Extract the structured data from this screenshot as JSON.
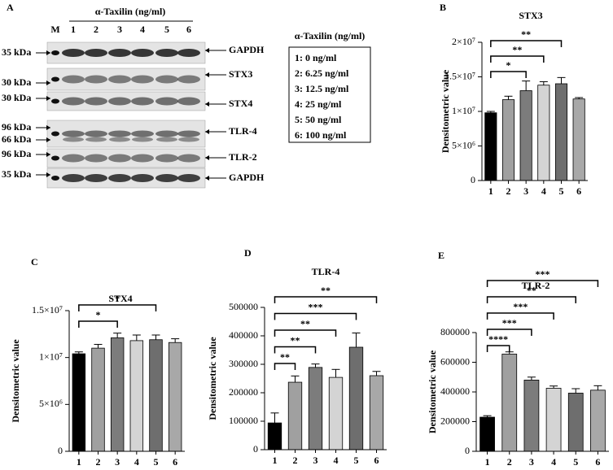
{
  "blot": {
    "panel": "A",
    "marker": "M",
    "treatment": "α-Taxilin (ng/ml)",
    "lanes": [
      "1",
      "2",
      "3",
      "4",
      "5",
      "6"
    ],
    "sizes": [
      "35 kDa",
      "30 kDa",
      "30 kDa",
      "96 kDa",
      "66 kDa",
      "96 kDa",
      "35 kDa"
    ],
    "proteins": [
      "GAPDH",
      "STX3",
      "STX4",
      "TLR-4",
      "TLR-2",
      "GAPDH"
    ]
  },
  "legend": {
    "title": "α-Taxilin (ng/ml)",
    "items": [
      "1: 0 ng/ml",
      "2: 6.25 ng/ml",
      "3: 12.5 ng/ml",
      "4: 25 ng/ml",
      "5: 50 ng/ml",
      "6: 100 ng/ml"
    ]
  },
  "chart_data": [
    {
      "type": "bar",
      "panel": "B",
      "title": "STX3",
      "y_label": "Densitometric value",
      "categories": [
        "1",
        "2",
        "3",
        "4",
        "5",
        "6"
      ],
      "values": [
        9800000,
        11700000,
        13000000,
        13800000,
        14000000,
        11800000
      ],
      "errors": [
        200000,
        500000,
        1400000,
        500000,
        900000,
        200000
      ],
      "colors": [
        "#000000",
        "#a0a0a0",
        "#7c7c7c",
        "#d4d4d4",
        "#6e6e6e",
        "#a8a8a8"
      ],
      "ylim": [
        0,
        20000000
      ],
      "yticks": [
        0,
        {
          "value": 5000000,
          "label": "5×10⁶"
        },
        {
          "value": 10000000,
          "label": "1×10⁷"
        },
        {
          "value": 15000000,
          "label": "1.5×10⁷"
        },
        {
          "value": 20000000,
          "label": "2×10⁷"
        }
      ],
      "brackets": [
        {
          "from": "1",
          "to": "3",
          "label": "*"
        },
        {
          "from": "1",
          "to": "4",
          "label": "**"
        },
        {
          "from": "1",
          "to": "5",
          "label": "**"
        }
      ]
    },
    {
      "type": "bar",
      "panel": "C",
      "title": "STX4",
      "y_label": "Densitometric value",
      "categories": [
        "1",
        "2",
        "3",
        "4",
        "5",
        "6"
      ],
      "values": [
        10400000,
        11000000,
        12100000,
        11800000,
        11900000,
        11600000
      ],
      "errors": [
        200000,
        400000,
        500000,
        600000,
        500000,
        400000
      ],
      "colors": [
        "#000000",
        "#a0a0a0",
        "#7c7c7c",
        "#d4d4d4",
        "#6e6e6e",
        "#a8a8a8"
      ],
      "ylim": [
        0,
        15000000
      ],
      "yticks": [
        0,
        {
          "value": 5000000,
          "label": "5×10⁶"
        },
        {
          "value": 10000000,
          "label": "1×10⁷"
        },
        {
          "value": 15000000,
          "label": "1.5×10⁷"
        }
      ],
      "brackets": [
        {
          "from": "1",
          "to": "3",
          "label": "*"
        },
        {
          "from": "1",
          "to": "5",
          "label": "*"
        }
      ]
    },
    {
      "type": "bar",
      "panel": "D",
      "title": "TLR-4",
      "y_label": "Densitometric value",
      "categories": [
        "1",
        "2",
        "3",
        "4",
        "5",
        "6"
      ],
      "values": [
        94000,
        237000,
        289000,
        254000,
        360000,
        260000
      ],
      "errors": [
        35000,
        22000,
        12000,
        28000,
        50000,
        15000
      ],
      "colors": [
        "#000000",
        "#a0a0a0",
        "#7c7c7c",
        "#d4d4d4",
        "#6e6e6e",
        "#a8a8a8"
      ],
      "ylim": [
        0,
        500000
      ],
      "yticks": [
        0,
        100000,
        200000,
        300000,
        400000,
        500000
      ],
      "brackets": [
        {
          "from": "1",
          "to": "2",
          "label": "**"
        },
        {
          "from": "1",
          "to": "3",
          "label": "**"
        },
        {
          "from": "1",
          "to": "4",
          "label": "**"
        },
        {
          "from": "1",
          "to": "5",
          "label": "***"
        },
        {
          "from": "1",
          "to": "6",
          "label": "**"
        }
      ]
    },
    {
      "type": "bar",
      "panel": "E",
      "title": "TLR-2",
      "y_label": "Densitometric value",
      "categories": [
        "1",
        "2",
        "3",
        "4",
        "5",
        "6"
      ],
      "values": [
        230000,
        655000,
        480000,
        425000,
        392000,
        412000
      ],
      "errors": [
        10000,
        15000,
        20000,
        15000,
        30000,
        30000
      ],
      "colors": [
        "#000000",
        "#a0a0a0",
        "#7c7c7c",
        "#d4d4d4",
        "#6e6e6e",
        "#a8a8a8"
      ],
      "ylim": [
        0,
        800000
      ],
      "yticks": [
        0,
        200000,
        400000,
        600000,
        800000
      ],
      "brackets": [
        {
          "from": "1",
          "to": "2",
          "label": "****"
        },
        {
          "from": "1",
          "to": "3",
          "label": "***"
        },
        {
          "from": "1",
          "to": "4",
          "label": "***"
        },
        {
          "from": "1",
          "to": "5",
          "label": "**"
        },
        {
          "from": "1",
          "to": "6",
          "label": "***"
        }
      ]
    }
  ]
}
